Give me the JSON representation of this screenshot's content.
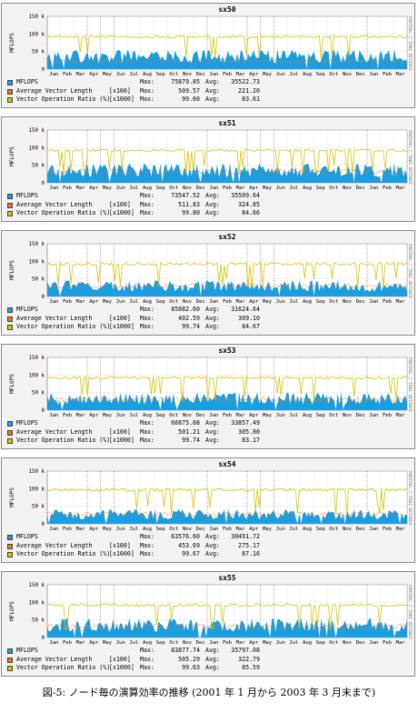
{
  "caption": "図-5: ノード毎の演算効率の推移 (2001 年 1 月から 2003 年 3 月末まで)",
  "colors": {
    "mflops": "#1a9ee0",
    "avg_vector_length": "#f07020",
    "vector_ratio": "#d8c400",
    "background": "#f3f3f3",
    "grid": "#c8c8c8",
    "month_marker": "#cc2222"
  },
  "shared": {
    "ylabel": "MFLOPS",
    "yticks": [
      "0",
      "50 k",
      "100 k",
      "150 k"
    ],
    "months": [
      "Jan",
      "Feb",
      "Mar",
      "Apr",
      "May",
      "Jun",
      "Jul",
      "Aug",
      "Sep",
      "Oct",
      "Nov",
      "Dec",
      "Jan",
      "Feb",
      "Mar",
      "Apr",
      "May",
      "Jun",
      "Jul",
      "Aug",
      "Sep",
      "Oct",
      "Nov",
      "Dec",
      "Jan",
      "Feb",
      "Mar"
    ],
    "side_note": "RRDTOOL / TOBI OETIKER",
    "legend_labels": [
      "MFLOPS",
      "Average Vector Length",
      "Vector Operation Ratio (%)"
    ],
    "legend_units": [
      "",
      "[x100]",
      "[x1000]"
    ],
    "max_label": "Max:",
    "avg_label": "Avg:"
  },
  "chart_data": [
    {
      "type": "area",
      "title": "sx50",
      "ylabel": "MFLOPS",
      "ylim": [
        0,
        150000
      ],
      "x_range": [
        "2001-01",
        "2003-03"
      ],
      "grid": true,
      "series": [
        {
          "name": "MFLOPS",
          "max": "75879.85",
          "avg": "35522.73",
          "level": 0.24
        },
        {
          "name": "Average Vector Length",
          "unit": "[x100]",
          "max": "509.57",
          "avg": "221.20",
          "level": 0.15
        },
        {
          "name": "Vector Operation Ratio (%)",
          "unit": "[x1000]",
          "max": "99.60",
          "avg": "83.61",
          "level": 0.62
        }
      ]
    },
    {
      "type": "area",
      "title": "sx51",
      "ylabel": "MFLOPS",
      "ylim": [
        0,
        150000
      ],
      "x_range": [
        "2001-01",
        "2003-03"
      ],
      "grid": true,
      "series": [
        {
          "name": "MFLOPS",
          "max": "73547.52",
          "avg": "35509.64",
          "level": 0.24
        },
        {
          "name": "Average Vector Length",
          "unit": "[x100]",
          "max": "511.83",
          "avg": "324.85",
          "level": 0.21
        },
        {
          "name": "Vector Operation Ratio (%)",
          "unit": "[x1000]",
          "max": "99.80",
          "avg": "84.66",
          "level": 0.62
        }
      ]
    },
    {
      "type": "area",
      "title": "sx52",
      "ylabel": "MFLOPS",
      "ylim": [
        0,
        150000
      ],
      "x_range": [
        "2001-01",
        "2003-03"
      ],
      "grid": true,
      "series": [
        {
          "name": "MFLOPS",
          "max": "85882.60",
          "avg": "31624.64",
          "level": 0.2
        },
        {
          "name": "Average Vector Length",
          "unit": "[x100]",
          "max": "402.59",
          "avg": "309.10",
          "level": 0.2
        },
        {
          "name": "Vector Operation Ratio (%)",
          "unit": "[x1000]",
          "max": "99.74",
          "avg": "84.67",
          "level": 0.62
        }
      ]
    },
    {
      "type": "area",
      "title": "sx53",
      "ylabel": "MFLOPS",
      "ylim": [
        0,
        150000
      ],
      "x_range": [
        "2001-01",
        "2003-03"
      ],
      "grid": true,
      "series": [
        {
          "name": "MFLOPS",
          "max": "66875.08",
          "avg": "33857.49",
          "level": 0.22
        },
        {
          "name": "Average Vector Length",
          "unit": "[x100]",
          "max": "501.21",
          "avg": "305.80",
          "level": 0.2
        },
        {
          "name": "Vector Operation Ratio (%)",
          "unit": "[x1000]",
          "max": "99.74",
          "avg": "83.17",
          "level": 0.62
        }
      ]
    },
    {
      "type": "area",
      "title": "sx54",
      "ylabel": "MFLOPS",
      "ylim": [
        0,
        150000
      ],
      "x_range": [
        "2001-01",
        "2003-03"
      ],
      "grid": true,
      "series": [
        {
          "name": "MFLOPS",
          "max": "63576.60",
          "avg": "30491.72",
          "level": 0.18
        },
        {
          "name": "Average Vector Length",
          "unit": "[x100]",
          "max": "453.69",
          "avg": "275.17",
          "level": 0.18
        },
        {
          "name": "Vector Operation Ratio (%)",
          "unit": "[x1000]",
          "max": "99.67",
          "avg": "87.16",
          "level": 0.65
        }
      ]
    },
    {
      "type": "area",
      "title": "sx55",
      "ylabel": "MFLOPS",
      "ylim": [
        0,
        150000
      ],
      "x_range": [
        "2001-01",
        "2003-03"
      ],
      "grid": true,
      "series": [
        {
          "name": "MFLOPS",
          "max": "83877.74",
          "avg": "35797.08",
          "level": 0.24
        },
        {
          "name": "Average Vector Length",
          "unit": "[x100]",
          "max": "505.29",
          "avg": "322.79",
          "level": 0.21
        },
        {
          "name": "Vector Operation Ratio (%)",
          "unit": "[x1000]",
          "max": "99.63",
          "avg": "85.59",
          "level": 0.62
        }
      ]
    }
  ]
}
